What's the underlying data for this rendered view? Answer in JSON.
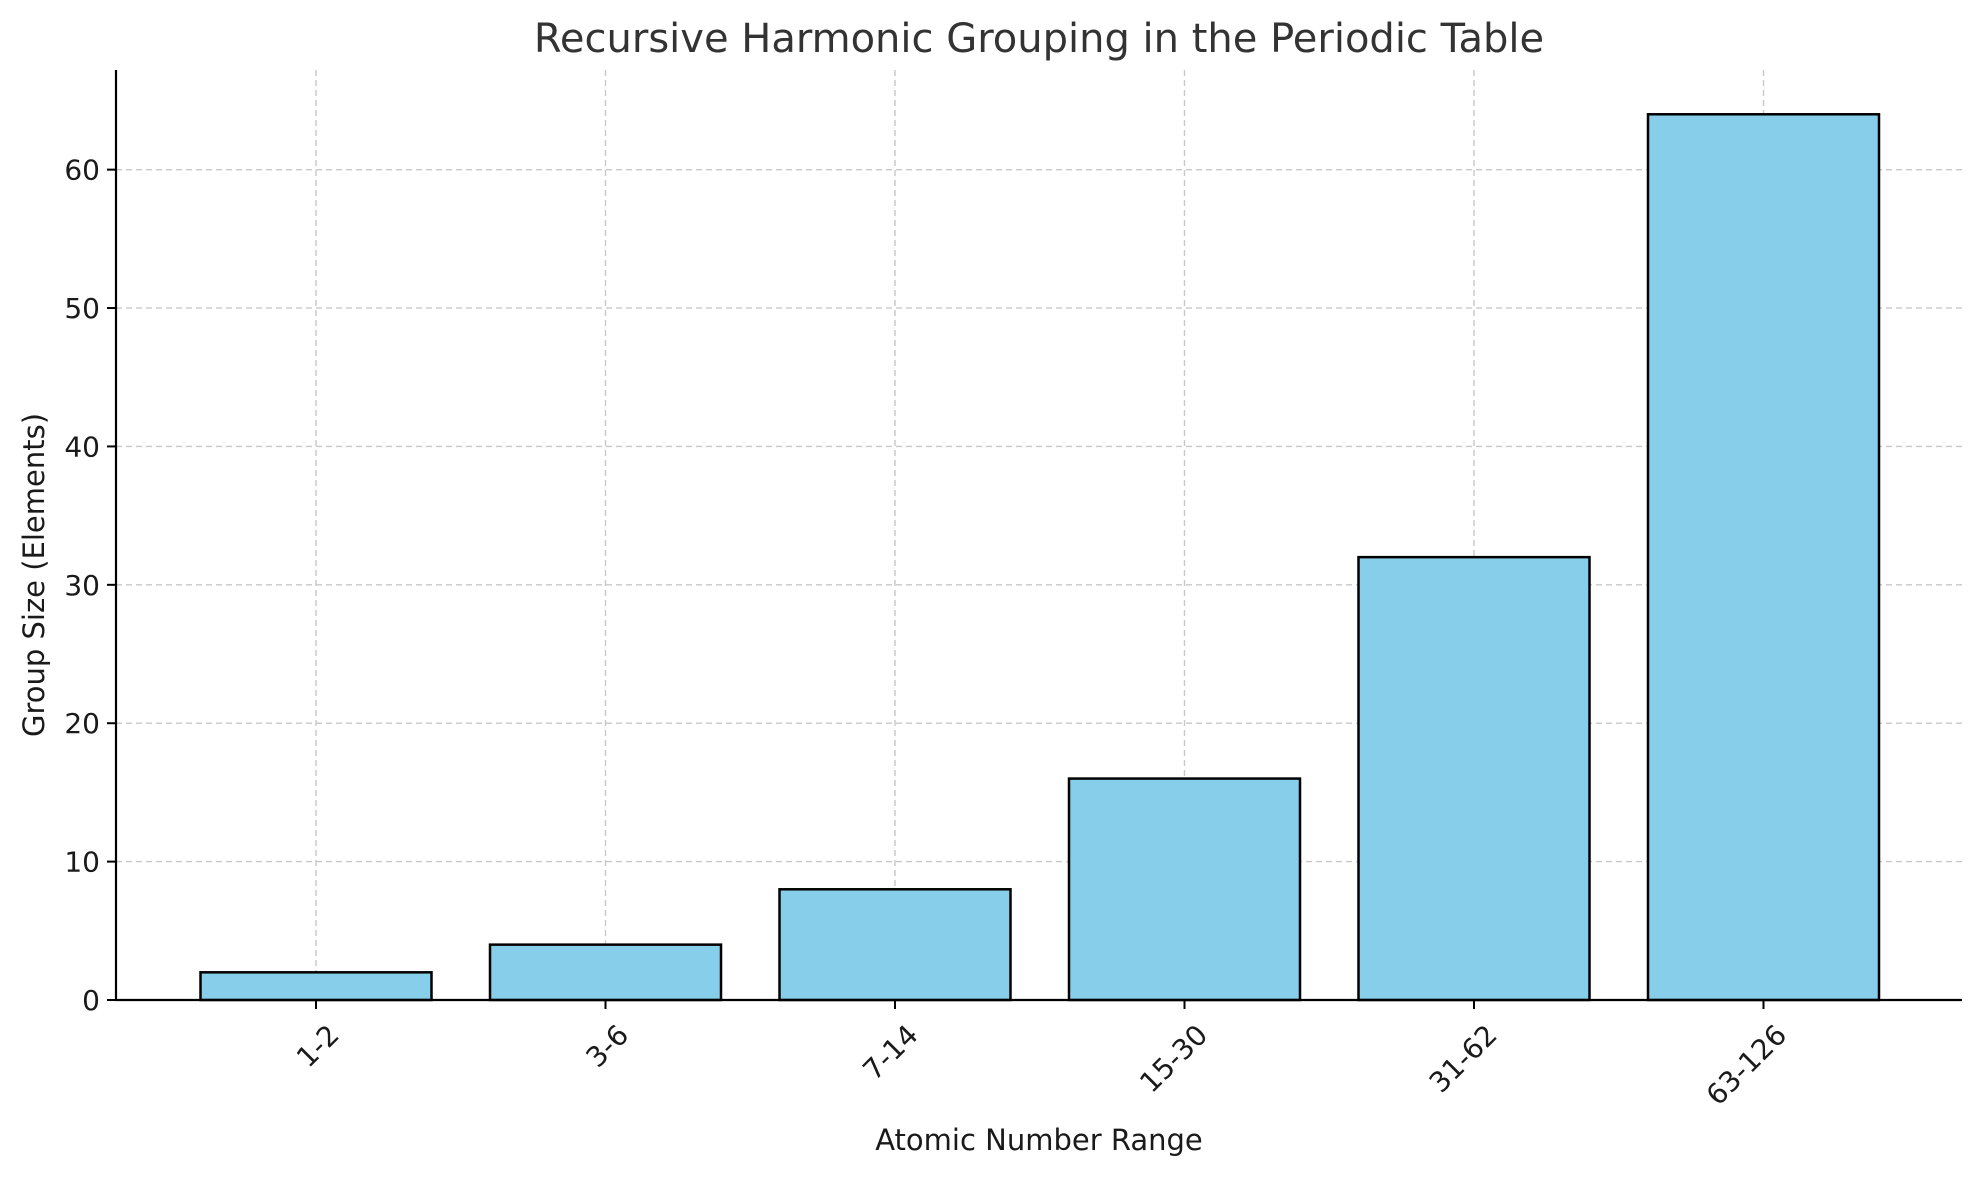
{
  "chart_data": {
    "type": "bar",
    "title": "Recursive Harmonic Grouping in the Periodic Table",
    "xlabel": "Atomic Number Range",
    "ylabel": "Group Size (Elements)",
    "categories": [
      "1-2",
      "3-6",
      "7-14",
      "15-30",
      "31-62",
      "63-126"
    ],
    "values": [
      2,
      4,
      8,
      16,
      32,
      64
    ],
    "ylim": [
      0,
      67.2
    ],
    "yticks": [
      0,
      10,
      20,
      30,
      40,
      50,
      60
    ],
    "grid": true,
    "bar_color": "#87ceeb",
    "edge_color": "#000000",
    "xtick_rotation": -45
  }
}
